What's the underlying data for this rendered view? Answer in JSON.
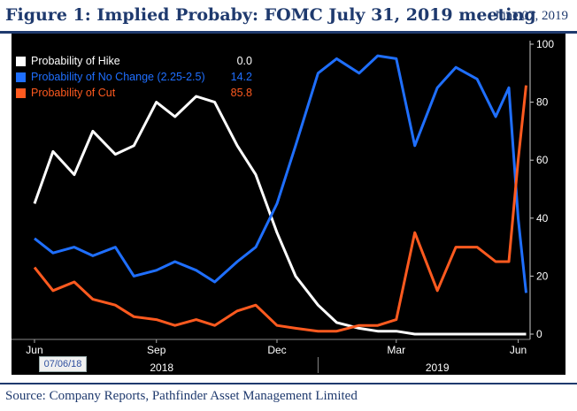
{
  "header": {
    "title": "Figure 1: Implied Probaby: FOMC July 31, 2019 meeting",
    "date": "June 07, 2019"
  },
  "footer": {
    "source": "Source: Company Reports, Pathfinder Asset Management Limited"
  },
  "date_tag": "07/06/18",
  "colors": {
    "header_text": "#1f3a6e",
    "background": "#000000",
    "hike": "#ffffff",
    "no_change": "#1f6fff",
    "cut": "#ff5a1f"
  },
  "chart_data": {
    "type": "line",
    "x_ticks": [
      "Jun",
      "Sep",
      "Dec",
      "Mar",
      "Jun"
    ],
    "year_labels": [
      "2018",
      "2019"
    ],
    "ylim": [
      0,
      100
    ],
    "y_ticks": [
      0,
      20,
      40,
      60,
      80,
      100
    ],
    "y_axis_side": "right",
    "legend_position": "top-left",
    "x": [
      "2018-06-01",
      "2018-06-15",
      "2018-07-01",
      "2018-07-15",
      "2018-08-01",
      "2018-08-15",
      "2018-09-01",
      "2018-09-15",
      "2018-10-01",
      "2018-10-15",
      "2018-11-01",
      "2018-11-15",
      "2018-12-01",
      "2018-12-15",
      "2019-01-01",
      "2019-01-15",
      "2019-02-01",
      "2019-02-15",
      "2019-03-01",
      "2019-03-15",
      "2019-04-01",
      "2019-04-15",
      "2019-05-01",
      "2019-05-15",
      "2019-05-25",
      "2019-06-01",
      "2019-06-07"
    ],
    "series": [
      {
        "name": "Probability of Hike",
        "last_value": "0.0",
        "values": [
          45,
          63,
          55,
          70,
          62,
          65,
          80,
          75,
          82,
          80,
          65,
          55,
          35,
          20,
          10,
          4,
          2,
          1,
          1,
          0,
          0,
          0,
          0,
          0,
          0,
          0,
          0
        ]
      },
      {
        "name": "Probability of No Change (2.25-2.5)",
        "last_value": "14.2",
        "values": [
          33,
          28,
          30,
          27,
          30,
          20,
          22,
          25,
          22,
          18,
          25,
          30,
          45,
          65,
          90,
          95,
          90,
          96,
          95,
          65,
          85,
          92,
          88,
          75,
          85,
          40,
          14.2
        ]
      },
      {
        "name": "Probability of Cut",
        "last_value": "85.8",
        "values": [
          23,
          15,
          18,
          12,
          10,
          6,
          5,
          3,
          5,
          3,
          8,
          10,
          3,
          2,
          1,
          1,
          3,
          3,
          5,
          35,
          15,
          30,
          30,
          25,
          25,
          60,
          85.8
        ]
      }
    ]
  }
}
